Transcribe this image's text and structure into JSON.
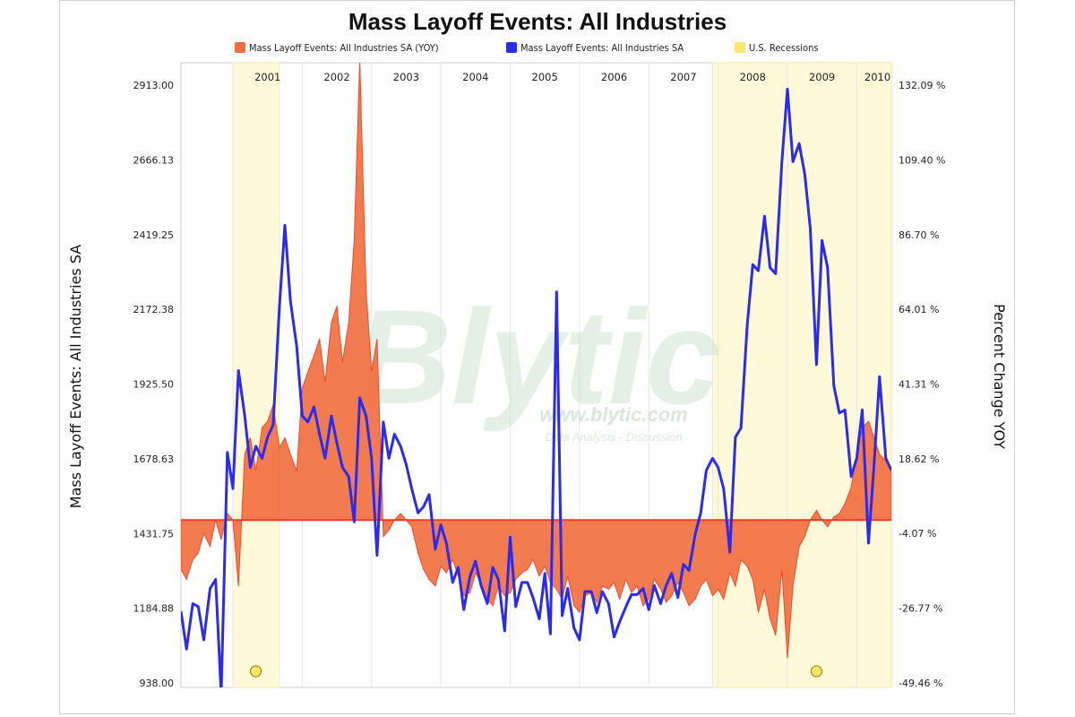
{
  "chart_data": {
    "type": "line",
    "title": "Mass Layoff Events: All Industries",
    "legend": {
      "placement": "top",
      "entries": [
        {
          "label": "Mass Layoff Events: All Industries SA (YOY)",
          "color": "#f26d3d"
        },
        {
          "label": "Mass Layoff Events: All Industries SA",
          "color": "#2b2bf0"
        },
        {
          "label": "U.S. Recessions",
          "color": "#f7e96a"
        }
      ]
    },
    "ylabel": "Mass Layoff Events: All Industries SA",
    "y2label": "Percent Change YOY",
    "yticks": [
      "938.00",
      "1184.88",
      "1431.75",
      "1678.63",
      "1925.50",
      "2172.38",
      "2419.25",
      "2666.13",
      "2913.00"
    ],
    "y2ticks": [
      "-49.46 %",
      "-26.77 %",
      "-4.07 %",
      "18.62 %",
      "41.31 %",
      "64.01 %",
      "86.70 %",
      "109.40 %",
      "132.09 %"
    ],
    "ylim": [
      938.0,
      2913.0
    ],
    "y2lim": [
      -49.46,
      132.09
    ],
    "xlim": [
      2000.25,
      2010.5
    ],
    "year_labels": [
      {
        "label": "2001",
        "x": 2001.5
      },
      {
        "label": "2002",
        "x": 2002.5
      },
      {
        "label": "2003",
        "x": 2003.5
      },
      {
        "label": "2004",
        "x": 2004.5
      },
      {
        "label": "2005",
        "x": 2005.5
      },
      {
        "label": "2006",
        "x": 2006.5
      },
      {
        "label": "2007",
        "x": 2007.5
      },
      {
        "label": "2008",
        "x": 2008.5
      },
      {
        "label": "2009",
        "x": 2009.5
      },
      {
        "label": "2010",
        "x": 2010.3
      }
    ],
    "year_gridlines": [
      2001,
      2002,
      2003,
      2004,
      2005,
      2006,
      2007,
      2008,
      2009,
      2010
    ],
    "recessions": [
      {
        "start": 2001.0,
        "end": 2001.67
      },
      {
        "start": 2007.92,
        "end": 2010.5
      }
    ],
    "grid": true,
    "series": [
      {
        "name": "Mass Layoff Events: All Industries SA (YOY)",
        "axis": "right",
        "style": "area",
        "color": "#f26d3d",
        "x": [
          2000.25,
          2000.33,
          2000.42,
          2000.5,
          2000.58,
          2000.67,
          2000.75,
          2000.83,
          2000.92,
          2001.0,
          2001.08,
          2001.17,
          2001.25,
          2001.33,
          2001.42,
          2001.5,
          2001.58,
          2001.67,
          2001.75,
          2001.83,
          2001.92,
          2002.0,
          2002.08,
          2002.17,
          2002.25,
          2002.33,
          2002.42,
          2002.5,
          2002.58,
          2002.67,
          2002.75,
          2002.83,
          2002.92,
          2003.0,
          2003.08,
          2003.17,
          2003.25,
          2003.33,
          2003.42,
          2003.5,
          2003.58,
          2003.67,
          2003.75,
          2003.83,
          2003.92,
          2004.0,
          2004.08,
          2004.17,
          2004.25,
          2004.33,
          2004.42,
          2004.5,
          2004.58,
          2004.67,
          2004.75,
          2004.83,
          2004.92,
          2005.0,
          2005.08,
          2005.17,
          2005.25,
          2005.33,
          2005.42,
          2005.5,
          2005.58,
          2005.67,
          2005.75,
          2005.83,
          2005.92,
          2006.0,
          2006.08,
          2006.17,
          2006.25,
          2006.33,
          2006.42,
          2006.5,
          2006.58,
          2006.67,
          2006.75,
          2006.83,
          2006.92,
          2007.0,
          2007.08,
          2007.17,
          2007.25,
          2007.33,
          2007.42,
          2007.5,
          2007.58,
          2007.67,
          2007.75,
          2007.83,
          2007.92,
          2008.0,
          2008.08,
          2008.17,
          2008.25,
          2008.33,
          2008.42,
          2008.5,
          2008.58,
          2008.67,
          2008.75,
          2008.83,
          2008.92,
          2009.0,
          2009.08,
          2009.17,
          2009.25,
          2009.33,
          2009.42,
          2009.5,
          2009.58,
          2009.67,
          2009.75,
          2009.83,
          2009.92,
          2010.0,
          2010.08,
          2010.17,
          2010.25,
          2010.33,
          2010.42,
          2010.5
        ],
        "values": [
          -15,
          -18,
          -12,
          -10,
          -4,
          -8,
          0,
          -6,
          2,
          0,
          -20,
          20,
          25,
          15,
          28,
          30,
          35,
          22,
          25,
          20,
          15,
          40,
          45,
          50,
          55,
          42,
          60,
          65,
          48,
          60,
          85,
          140,
          70,
          45,
          55,
          -5,
          -3,
          0,
          2,
          0,
          -2,
          -10,
          -15,
          -18,
          -20,
          -14,
          -16,
          -12,
          -17,
          -23,
          -22,
          -16,
          -19,
          -24,
          -26,
          -20,
          -23,
          -22,
          -18,
          -16,
          -15,
          -12,
          -17,
          -14,
          -19,
          -21,
          -24,
          -17,
          -26,
          -28,
          -23,
          -22,
          -25,
          -20,
          -21,
          -19,
          -24,
          -18,
          -22,
          -20,
          -26,
          -24,
          -18,
          -21,
          -25,
          -23,
          -19,
          -22,
          -26,
          -24,
          -20,
          -18,
          -23,
          -21,
          -24,
          -16,
          -20,
          -12,
          -14,
          -18,
          -28,
          -21,
          -30,
          -35,
          -15,
          -42,
          -20,
          -8,
          -5,
          0,
          3,
          0,
          -2,
          1,
          2,
          5,
          10,
          20,
          28,
          30,
          25,
          20,
          18,
          15
        ]
      },
      {
        "name": "Mass Layoff Events: All Industries SA",
        "axis": "left",
        "style": "line",
        "color": "#2b2bf0",
        "x": [
          2000.25,
          2000.33,
          2000.42,
          2000.5,
          2000.58,
          2000.67,
          2000.75,
          2000.83,
          2000.92,
          2001.0,
          2001.08,
          2001.17,
          2001.25,
          2001.33,
          2001.42,
          2001.5,
          2001.58,
          2001.67,
          2001.75,
          2001.83,
          2001.92,
          2002.0,
          2002.08,
          2002.17,
          2002.25,
          2002.33,
          2002.42,
          2002.5,
          2002.58,
          2002.67,
          2002.75,
          2002.83,
          2002.92,
          2003.0,
          2003.08,
          2003.17,
          2003.25,
          2003.33,
          2003.42,
          2003.5,
          2003.58,
          2003.67,
          2003.75,
          2003.83,
          2003.92,
          2004.0,
          2004.08,
          2004.17,
          2004.25,
          2004.33,
          2004.42,
          2004.5,
          2004.58,
          2004.67,
          2004.75,
          2004.83,
          2004.92,
          2005.0,
          2005.08,
          2005.17,
          2005.25,
          2005.33,
          2005.42,
          2005.5,
          2005.58,
          2005.67,
          2005.75,
          2005.83,
          2005.92,
          2006.0,
          2006.08,
          2006.17,
          2006.25,
          2006.33,
          2006.42,
          2006.5,
          2006.58,
          2006.67,
          2006.75,
          2006.83,
          2006.92,
          2007.0,
          2007.08,
          2007.17,
          2007.25,
          2007.33,
          2007.42,
          2007.5,
          2007.58,
          2007.67,
          2007.75,
          2007.83,
          2007.92,
          2008.0,
          2008.08,
          2008.17,
          2008.25,
          2008.33,
          2008.42,
          2008.5,
          2008.58,
          2008.67,
          2008.75,
          2008.83,
          2008.92,
          2009.0,
          2009.08,
          2009.17,
          2009.25,
          2009.33,
          2009.42,
          2009.5,
          2009.58,
          2009.67,
          2009.75,
          2009.83,
          2009.92,
          2010.0,
          2010.08,
          2010.17,
          2010.25,
          2010.33,
          2010.42,
          2010.5
        ],
        "values": [
          1175,
          1050,
          1200,
          1190,
          1080,
          1250,
          1280,
          900,
          1700,
          1580,
          1970,
          1820,
          1650,
          1720,
          1680,
          1750,
          1790,
          2180,
          2450,
          2200,
          2050,
          1820,
          1800,
          1850,
          1760,
          1680,
          1820,
          1730,
          1650,
          1620,
          1470,
          1880,
          1820,
          1680,
          1360,
          1800,
          1680,
          1760,
          1720,
          1660,
          1580,
          1500,
          1520,
          1560,
          1380,
          1460,
          1400,
          1270,
          1320,
          1180,
          1290,
          1340,
          1260,
          1200,
          1320,
          1280,
          1110,
          1420,
          1190,
          1270,
          1270,
          1220,
          1150,
          1300,
          1100,
          2230,
          1160,
          1250,
          1120,
          1080,
          1240,
          1240,
          1170,
          1240,
          1200,
          1090,
          1140,
          1190,
          1230,
          1230,
          1250,
          1180,
          1260,
          1200,
          1260,
          1300,
          1220,
          1330,
          1310,
          1430,
          1500,
          1640,
          1680,
          1650,
          1580,
          1370,
          1750,
          1780,
          2120,
          2320,
          2300,
          2480,
          2310,
          2290,
          2660,
          2900,
          2660,
          2720,
          2620,
          2440,
          1990,
          2400,
          2310,
          1920,
          1830,
          1840,
          1620,
          1680,
          1840,
          1400,
          1660,
          1950,
          1680,
          1640
        ]
      }
    ]
  }
}
